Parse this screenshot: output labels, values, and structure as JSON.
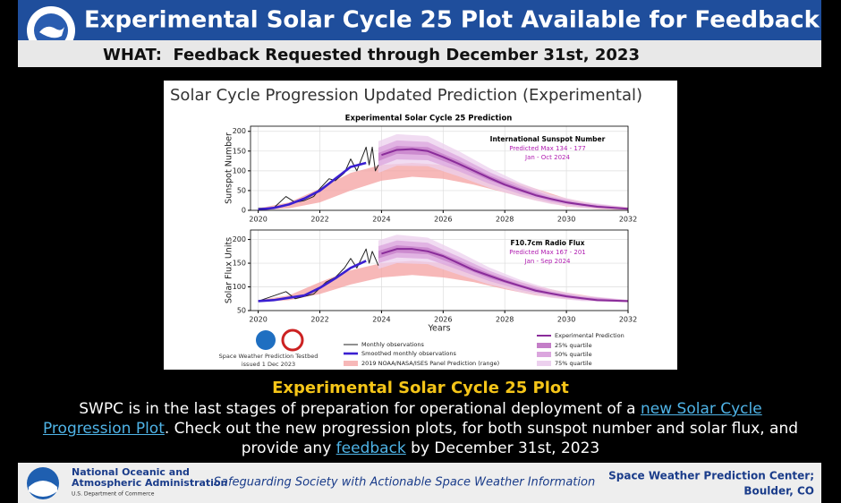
{
  "header": {
    "title": "Experimental Solar Cycle 25 Plot Available for Feedback",
    "subtitle": "WHAT:  Feedback Requested through December 31st, 2023"
  },
  "figure": {
    "heading": "Solar Cycle Progression Updated Prediction (Experimental)",
    "credit": [
      "Space Weather Prediction Testbed",
      "issued 1 Dec 2023"
    ]
  },
  "chart_data": [
    {
      "type": "line",
      "title": "Experimental Solar Cycle 25 Prediction",
      "y_label": "Sunspot Number",
      "annotation": [
        "International Sunspot Number",
        "Predicted Max 134 - 177",
        "Jan - Oct 2024"
      ],
      "xlim": [
        2019.75,
        2032
      ],
      "xticks": [
        2020,
        2022,
        2024,
        2026,
        2028,
        2030,
        2032
      ],
      "ylim": [
        0,
        213
      ],
      "yticks": [
        0,
        50,
        100,
        150,
        200
      ],
      "grid": true,
      "series": [
        {
          "name": "2019 NOAA/NASA/ISES Panel Prediction (range)",
          "color": "#f4a0a0",
          "x": [
            2020,
            2021,
            2022,
            2023,
            2024,
            2025,
            2026,
            2027,
            2028,
            2029,
            2030,
            2031,
            2032
          ],
          "lower": [
            0,
            5,
            20,
            50,
            75,
            85,
            80,
            65,
            45,
            25,
            10,
            3,
            0
          ],
          "upper": [
            5,
            20,
            55,
            95,
            115,
            120,
            115,
            100,
            80,
            55,
            30,
            15,
            8
          ]
        },
        {
          "name": "75% quartile",
          "color": "#ecd0ee",
          "x": [
            2023.9,
            2024.5,
            2025.5,
            2026.5,
            2027.5,
            2028.5,
            2029.5,
            2030.5,
            2032
          ],
          "lower": [
            95,
            113,
            112,
            86,
            57,
            34,
            16,
            6,
            0
          ],
          "upper": [
            175,
            193,
            188,
            150,
            107,
            70,
            40,
            22,
            8
          ]
        },
        {
          "name": "50% quartile",
          "color": "#dba6de",
          "x": [
            2023.9,
            2024.5,
            2025.5,
            2026.5,
            2027.5,
            2028.5,
            2029.5,
            2030.5,
            2032
          ],
          "lower": [
            111,
            129,
            127,
            99,
            67,
            41,
            21,
            9,
            2
          ],
          "upper": [
            159,
            177,
            173,
            137,
            97,
            63,
            35,
            19,
            6
          ]
        },
        {
          "name": "25% quartile",
          "color": "#c47ec8",
          "x": [
            2023.9,
            2024.5,
            2025.5,
            2026.5,
            2027.5,
            2028.5,
            2029.5,
            2030.5,
            2032
          ],
          "lower": [
            125,
            143,
            140,
            110,
            76,
            47,
            25,
            12,
            3
          ],
          "upper": [
            145,
            163,
            160,
            126,
            88,
            57,
            31,
            16,
            5
          ]
        },
        {
          "name": "Experimental Prediction",
          "color": "#8a2c9a",
          "x": [
            2024,
            2024.5,
            2025,
            2025.5,
            2026,
            2026.5,
            2027,
            2027.5,
            2028,
            2029,
            2030,
            2031,
            2032
          ],
          "values": [
            140,
            153,
            155,
            150,
            135,
            118,
            100,
            82,
            65,
            38,
            20,
            9,
            4
          ]
        },
        {
          "name": "Monthly observations",
          "color": "#222222",
          "x": [
            2020,
            2020.5,
            2020.9,
            2021.2,
            2021.5,
            2021.8,
            2022,
            2022.3,
            2022.5,
            2022.8,
            2023,
            2023.2,
            2023.5,
            2023.6,
            2023.7,
            2023.8,
            2023.9
          ],
          "values": [
            5,
            6,
            35,
            20,
            25,
            35,
            55,
            80,
            75,
            95,
            130,
            100,
            160,
            115,
            160,
            100,
            115
          ]
        },
        {
          "name": "Smoothed monthly observations",
          "color": "#3a1fd1",
          "x": [
            2020,
            2020.5,
            2021,
            2021.5,
            2022,
            2022.5,
            2023,
            2023.5
          ],
          "values": [
            2,
            6,
            15,
            30,
            50,
            80,
            110,
            120
          ]
        }
      ]
    },
    {
      "type": "line",
      "y_label": "Solar Flux Units",
      "x_label": "Years",
      "annotation": [
        "F10.7cm Radio Flux",
        "Predicted Max 167 - 201",
        "Jan - Sep 2024"
      ],
      "xlim": [
        2019.75,
        2032
      ],
      "xticks": [
        2020,
        2022,
        2024,
        2026,
        2028,
        2030,
        2032
      ],
      "ylim": [
        50,
        220
      ],
      "yticks": [
        50,
        100,
        150,
        200
      ],
      "grid": true,
      "series": [
        {
          "color": "#f4a0a0",
          "x": [
            2020,
            2021,
            2022,
            2023,
            2024,
            2025,
            2026,
            2027,
            2028,
            2029,
            2030,
            2031,
            2032
          ],
          "lower": [
            68,
            72,
            85,
            105,
            120,
            125,
            120,
            110,
            95,
            82,
            74,
            70,
            68
          ],
          "upper": [
            72,
            82,
            110,
            135,
            150,
            155,
            150,
            140,
            120,
            102,
            88,
            78,
            72
          ]
        },
        {
          "color": "#ecd0ee",
          "x": [
            2023.9,
            2024.5,
            2025.5,
            2026.5,
            2027.5,
            2028.5,
            2029.5,
            2030.5,
            2032
          ],
          "lower": [
            138,
            150,
            148,
            126,
            105,
            89,
            77,
            70,
            67
          ],
          "upper": [
            198,
            210,
            204,
            174,
            141,
            115,
            95,
            82,
            73
          ]
        },
        {
          "color": "#dba6de",
          "x": [
            2023.9,
            2024.5,
            2025.5,
            2026.5,
            2027.5,
            2028.5,
            2029.5,
            2030.5,
            2032
          ],
          "lower": [
            150,
            162,
            159,
            136,
            112,
            94,
            81,
            72,
            68
          ],
          "upper": [
            186,
            198,
            193,
            164,
            134,
            110,
            91,
            80,
            72
          ]
        },
        {
          "color": "#c47ec8",
          "x": [
            2023.9,
            2024.5,
            2025.5,
            2026.5,
            2027.5,
            2028.5,
            2029.5,
            2030.5,
            2032
          ],
          "lower": [
            160,
            172,
            169,
            144,
            118,
            99,
            84,
            74,
            69
          ],
          "upper": [
            176,
            188,
            183,
            156,
            128,
            105,
            88,
            78,
            71
          ]
        },
        {
          "color": "#8a2c9a",
          "x": [
            2024,
            2024.5,
            2025,
            2025.5,
            2026,
            2026.5,
            2027,
            2028,
            2029,
            2030,
            2031,
            2032
          ],
          "values": [
            170,
            180,
            180,
            175,
            165,
            150,
            135,
            112,
            92,
            80,
            72,
            70
          ]
        },
        {
          "color": "#222222",
          "x": [
            2020,
            2020.9,
            2021.2,
            2021.8,
            2022.2,
            2022.5,
            2022.8,
            2023,
            2023.2,
            2023.5,
            2023.6,
            2023.7,
            2023.9
          ],
          "values": [
            70,
            90,
            75,
            85,
            110,
            120,
            140,
            160,
            140,
            180,
            150,
            175,
            145
          ]
        },
        {
          "color": "#3a1fd1",
          "x": [
            2020,
            2020.5,
            2021,
            2021.5,
            2022,
            2022.5,
            2023,
            2023.5
          ],
          "values": [
            70,
            72,
            77,
            82,
            98,
            118,
            140,
            155
          ]
        }
      ]
    }
  ],
  "body": {
    "title": "Experimental Solar Cycle 25 Plot",
    "paragraph": [
      "SWPC is in the last stages of preparation for operational deployment of a ",
      "new Solar Cycle Progression Plot",
      ". Check out the new progression plots, for both sunspot number and solar flux, and provide any ",
      "feedback",
      " by December 31st, 2023"
    ]
  },
  "footer": {
    "org": [
      "National Oceanic and",
      "Atmospheric Administration"
    ],
    "dept": "U.S. Department of Commerce",
    "tagline": "Safeguarding Society with Actionable Space Weather Information",
    "center": [
      "Space Weather Prediction Center;",
      "Boulder, CO"
    ]
  }
}
